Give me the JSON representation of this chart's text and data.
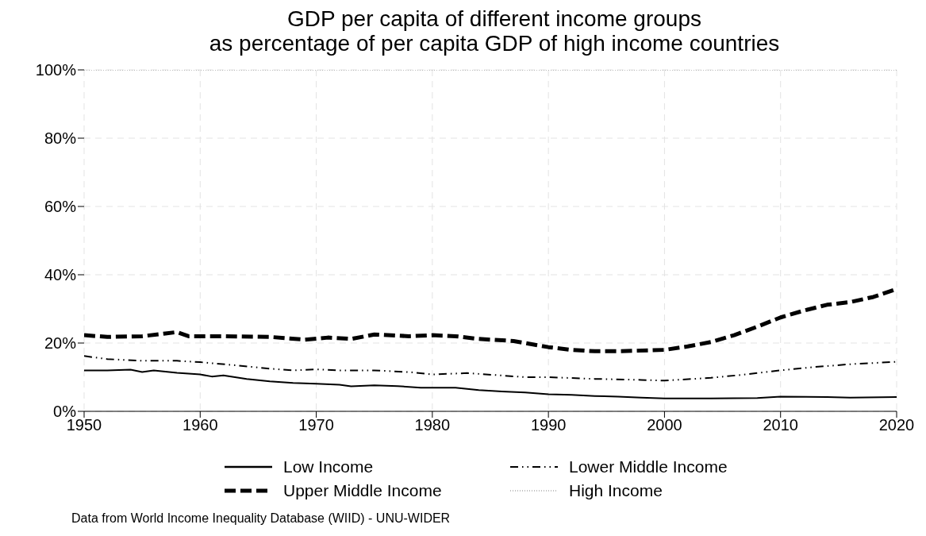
{
  "chart_data": {
    "type": "line",
    "title": "GDP per capita of different income groups\nas percentage of per capita GDP of high income countries",
    "xlim": [
      1950,
      2020
    ],
    "xticks": [
      1950,
      1960,
      1970,
      1980,
      1990,
      2000,
      2010,
      2020
    ],
    "ylim": [
      0,
      100
    ],
    "yticks": [
      {
        "value": 0,
        "label": "0%"
      },
      {
        "value": 20,
        "label": "20%"
      },
      {
        "value": 40,
        "label": "40%"
      },
      {
        "value": 60,
        "label": "60%"
      },
      {
        "value": 80,
        "label": "80%"
      },
      {
        "value": 100,
        "label": "100%"
      }
    ],
    "grid": true,
    "legend": "bottom",
    "marker": "none",
    "series": [
      {
        "name": "Low Income",
        "color": "#000000",
        "line_style": "solid",
        "x": [
          1950,
          1952,
          1954,
          1955,
          1956,
          1958,
          1960,
          1961,
          1962,
          1964,
          1966,
          1968,
          1970,
          1972,
          1973,
          1975,
          1977,
          1979,
          1982,
          1984,
          1986,
          1988,
          1990,
          1992,
          1994,
          1996,
          1998,
          2000,
          2004,
          2008,
          2010,
          2014,
          2016,
          2020
        ],
        "values": [
          12,
          12,
          12.2,
          11.5,
          12,
          11.3,
          10.8,
          10.2,
          10.5,
          9.5,
          8.8,
          8.3,
          8.1,
          7.8,
          7.3,
          7.6,
          7.4,
          6.9,
          6.9,
          6.2,
          5.8,
          5.5,
          5,
          4.8,
          4.5,
          4.3,
          4,
          3.8,
          3.8,
          3.9,
          4.3,
          4.2,
          4,
          4.2
        ]
      },
      {
        "name": "Lower Middle Income",
        "color": "#000000",
        "line_style": "dashdot",
        "x": [
          1950,
          1952,
          1955,
          1958,
          1960,
          1963,
          1966,
          1968,
          1970,
          1972,
          1975,
          1978,
          1980,
          1983,
          1986,
          1988,
          1990,
          1994,
          1998,
          2000,
          2004,
          2007,
          2010,
          2013,
          2016,
          2020
        ],
        "values": [
          16.2,
          15.3,
          14.8,
          14.8,
          14.4,
          13.5,
          12.5,
          12,
          12.3,
          12,
          12,
          11.5,
          10.8,
          11.2,
          10.5,
          10,
          10,
          9.5,
          9.2,
          9,
          9.8,
          10.8,
          12,
          13,
          13.8,
          14.5
        ]
      },
      {
        "name": "Upper Middle Income",
        "color": "#000000",
        "line_style": "dashed",
        "x": [
          1950,
          1952,
          1955,
          1957,
          1958,
          1959,
          1962,
          1966,
          1969,
          1971,
          1973,
          1975,
          1978,
          1980,
          1982,
          1984,
          1987,
          1990,
          1992,
          1994,
          1996,
          2000,
          2002,
          2004,
          2006,
          2008,
          2010,
          2012,
          2014,
          2016,
          2018,
          2020
        ],
        "values": [
          22.3,
          21.8,
          22,
          22.8,
          23.2,
          22,
          22,
          21.8,
          21,
          21.6,
          21.2,
          22.5,
          22,
          22.3,
          22,
          21.2,
          20.6,
          18.8,
          18,
          17.6,
          17.6,
          18,
          19,
          20.3,
          22.3,
          24.8,
          27.5,
          29.5,
          31.2,
          32,
          33.5,
          35.8
        ]
      },
      {
        "name": "High Income",
        "color": "#808080",
        "line_style": "dotted",
        "x": [
          1950,
          2020
        ],
        "values": [
          100,
          100
        ]
      }
    ],
    "annotations": [
      "Data from World Income Inequality Database (WIID) - UNU-WIDER"
    ]
  }
}
